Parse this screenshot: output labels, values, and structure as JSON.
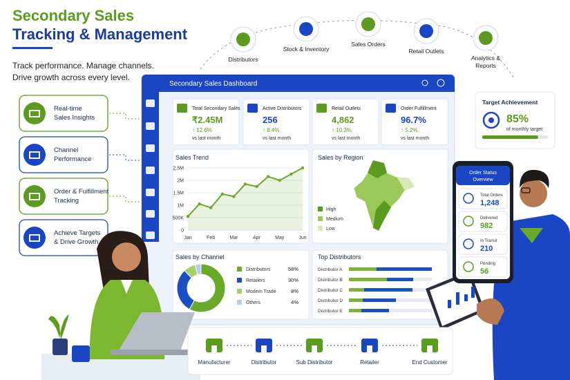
{
  "header": {
    "title_line1": "Secondary Sales",
    "title_line2": "Tracking & Management",
    "subtitle_line1": "Track performance. Manage channels.",
    "subtitle_line2": "Drive growth across every level."
  },
  "features": [
    [
      "Real-time",
      "Sales Insights"
    ],
    [
      "Channel",
      "Performance"
    ],
    [
      "Order & Fulfillment",
      "Tracking"
    ],
    [
      "Achieve Targets",
      "& Drive Growth"
    ]
  ],
  "workflow_nodes": [
    [
      "Distributors"
    ],
    [
      "Stock & Inventory"
    ],
    [
      "Sales Orders"
    ],
    [
      "Retail Outlets"
    ],
    [
      "Analytics &",
      "Reports"
    ]
  ],
  "dashboard": {
    "title": "Secondary Sales Dashboard",
    "kpis": [
      {
        "label": "Total Secondary Sales",
        "value": "₹2.45M",
        "change": "↑ 12.6%",
        "note": "vs last month"
      },
      {
        "label": "Active Distributors",
        "value": "256",
        "change": "↑ 8.4%",
        "note": "vs last month"
      },
      {
        "label": "Retail Outlets",
        "value": "4,862",
        "change": "↑ 10.3%",
        "note": "vs last month"
      },
      {
        "label": "Order Fulfillment",
        "value": "96.7%",
        "change": "↑ 5.2%",
        "note": "vs last month"
      }
    ],
    "sales_trend": {
      "type": "line",
      "title": "Sales Trend",
      "categories": [
        "Jan",
        null,
        "Feb",
        null,
        "Mar",
        null,
        "Apr",
        null,
        "May",
        null,
        "Jun"
      ],
      "values": [
        550000,
        1050000,
        900000,
        1450000,
        1350000,
        1850000,
        1750000,
        2150000,
        2000000,
        2250000,
        2500000
      ],
      "color": "#6aaa2a",
      "ylim": [
        0,
        2500000
      ],
      "yticks": [
        0,
        {
          "value": 500000,
          "label": "500K"
        },
        {
          "value": 1000000,
          "label": "1M"
        },
        {
          "value": 1500000,
          "label": "1.5M"
        },
        {
          "value": 2000000,
          "label": "2M"
        },
        {
          "value": 2500000,
          "label": "2.5M"
        }
      ],
      "grid": true
    },
    "sales_by_region": {
      "title": "Sales by Region",
      "legend": [
        "High",
        "Medium",
        "Low"
      ],
      "colors": [
        "#5a9a1e",
        "#9cc85a",
        "#d6e8b4"
      ]
    },
    "sales_by_channel": {
      "type": "pie",
      "title": "Sales by Channel",
      "categories": [
        "Distributors",
        "Retailers",
        "Modern Trade",
        "Others"
      ],
      "values": [
        58,
        30,
        8,
        4
      ],
      "value_labels": [
        "58%",
        "30%",
        "8%",
        "4%"
      ],
      "colors": [
        "#6aaa2a",
        "#1a4fc4",
        "#a9cf6a",
        "#b8cdf0"
      ]
    },
    "top_distributors": {
      "type": "bar",
      "title": "Top Distributors",
      "categories": [
        "Distributor A",
        "Distributor B",
        "Distributor C",
        "Distributor D",
        "Distributor E"
      ],
      "series": [
        {
          "color": "#7ab536",
          "values": [
            40,
            55,
            22,
            20,
            18
          ]
        },
        {
          "color": "#1a4fc4",
          "values": [
            80,
            38,
            70,
            48,
            40
          ]
        }
      ]
    }
  },
  "target": {
    "title": "Target Achievement",
    "value": 85,
    "value_label": "85%",
    "note": "of monthly target"
  },
  "order_status": {
    "title": [
      "Order Status",
      "Overview"
    ],
    "items": [
      {
        "label": "Total Orders",
        "value": "1,248"
      },
      {
        "label": "Delivered",
        "value": "982"
      },
      {
        "label": "In Transit",
        "value": "210"
      },
      {
        "label": "Pending",
        "value": "56"
      }
    ]
  },
  "flow": [
    "Manufacturer",
    "Distributor",
    "Sub Distributor",
    "Retailer",
    "End Customer"
  ]
}
